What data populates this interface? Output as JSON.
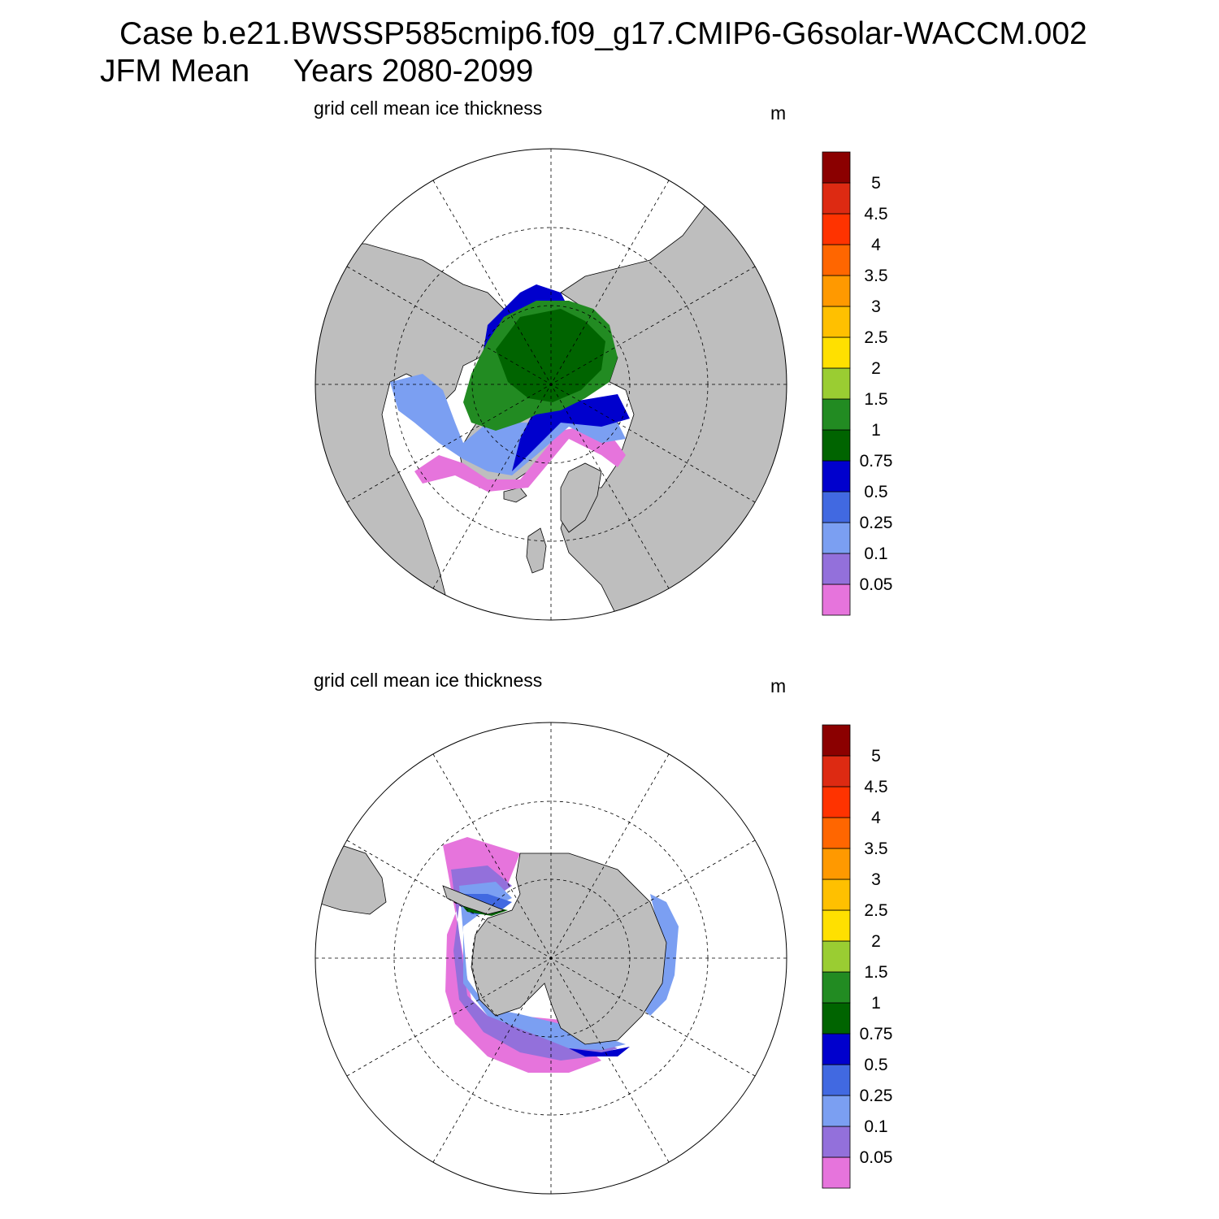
{
  "title": {
    "line1": "Case b.e21.BWSSP585cmip6.f09_g17.CMIP6-G6solar-WACCM.002",
    "line2": "JFM Mean     Years 2080-2099"
  },
  "colors": {
    "land": "#bebebe",
    "ocean": "#ffffff",
    "levels": [
      "#e674dc",
      "#9370db",
      "#7b9ff2",
      "#4169e1",
      "#0000cd",
      "#006400",
      "#228b22",
      "#9acd32",
      "#ffe000",
      "#ffc000",
      "#ff9900",
      "#ff6600",
      "#ff3300",
      "#dd2a12",
      "#8b0000"
    ]
  },
  "colorbar_labels": [
    "0.05",
    "0.1",
    "0.25",
    "0.5",
    "0.75",
    "1",
    "1.5",
    "2",
    "2.5",
    "3",
    "3.5",
    "4",
    "4.5",
    "5"
  ],
  "panels": [
    {
      "id": "north",
      "hemisphere": "Arctic",
      "subtitle": "grid cell mean ice thickness",
      "units": "m"
    },
    {
      "id": "south",
      "hemisphere": "Antarctic",
      "subtitle": "grid cell mean ice thickness",
      "units": "m"
    }
  ]
}
